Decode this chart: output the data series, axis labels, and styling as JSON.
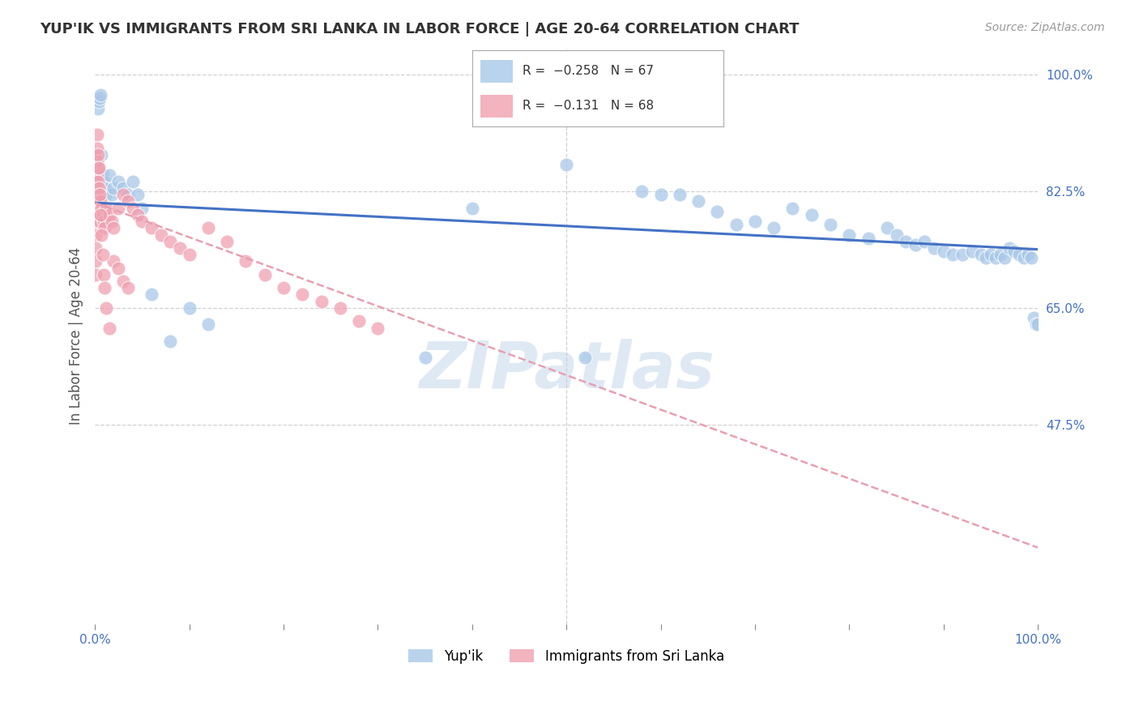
{
  "title": "YUP'IK VS IMMIGRANTS FROM SRI LANKA IN LABOR FORCE | AGE 20-64 CORRELATION CHART",
  "source": "Source: ZipAtlas.com",
  "ylabel": "In Labor Force | Age 20-64",
  "xlim": [
    0.0,
    1.0
  ],
  "ylim": [
    0.175,
    1.04
  ],
  "ytick_positions": [
    0.475,
    0.65,
    0.825,
    1.0
  ],
  "ytick_labels": [
    "47.5%",
    "65.0%",
    "82.5%",
    "100.0%"
  ],
  "yupik_color": "#a8c8e8",
  "sri_lanka_color": "#f0a0b0",
  "trend_yupik_color": "#4472c4",
  "trend_sri_lanka_color": "#e8a0b0",
  "watermark": "ZIPatlas",
  "yupik_x": [
    0.002,
    0.003,
    0.004,
    0.005,
    0.006,
    0.007,
    0.008,
    0.009,
    0.01,
    0.012,
    0.015,
    0.018,
    0.02,
    0.025,
    0.03,
    0.035,
    0.04,
    0.045,
    0.05,
    0.06,
    0.08,
    0.1,
    0.12,
    0.35,
    0.4,
    0.5,
    0.52,
    0.58,
    0.6,
    0.62,
    0.64,
    0.66,
    0.68,
    0.7,
    0.72,
    0.74,
    0.76,
    0.78,
    0.8,
    0.82,
    0.84,
    0.85,
    0.86,
    0.87,
    0.88,
    0.89,
    0.9,
    0.91,
    0.92,
    0.93,
    0.94,
    0.945,
    0.95,
    0.955,
    0.96,
    0.965,
    0.97,
    0.975,
    0.98,
    0.985,
    0.99,
    0.993,
    0.996,
    0.998,
    1.0
  ],
  "yupik_y": [
    0.855,
    0.95,
    0.96,
    0.965,
    0.97,
    0.88,
    0.85,
    0.84,
    0.83,
    0.82,
    0.85,
    0.82,
    0.83,
    0.84,
    0.83,
    0.82,
    0.84,
    0.82,
    0.8,
    0.67,
    0.6,
    0.65,
    0.625,
    0.575,
    0.8,
    0.865,
    0.575,
    0.825,
    0.82,
    0.82,
    0.81,
    0.795,
    0.775,
    0.78,
    0.77,
    0.8,
    0.79,
    0.775,
    0.76,
    0.755,
    0.77,
    0.76,
    0.75,
    0.745,
    0.75,
    0.74,
    0.735,
    0.73,
    0.73,
    0.735,
    0.73,
    0.725,
    0.73,
    0.725,
    0.73,
    0.725,
    0.74,
    0.735,
    0.73,
    0.725,
    0.73,
    0.725,
    0.635,
    0.625,
    0.625
  ],
  "sri_lanka_x": [
    0.001,
    0.001,
    0.001,
    0.001,
    0.001,
    0.001,
    0.001,
    0.001,
    0.001,
    0.001,
    0.002,
    0.002,
    0.002,
    0.002,
    0.002,
    0.003,
    0.003,
    0.003,
    0.004,
    0.004,
    0.005,
    0.005,
    0.006,
    0.006,
    0.007,
    0.008,
    0.009,
    0.01,
    0.012,
    0.015,
    0.018,
    0.02,
    0.025,
    0.03,
    0.035,
    0.04,
    0.045,
    0.05,
    0.06,
    0.07,
    0.08,
    0.09,
    0.1,
    0.12,
    0.14,
    0.16,
    0.18,
    0.2,
    0.22,
    0.24,
    0.26,
    0.28,
    0.3,
    0.02,
    0.025,
    0.03,
    0.035,
    0.003,
    0.004,
    0.005,
    0.006,
    0.007,
    0.008,
    0.009,
    0.01,
    0.012,
    0.015
  ],
  "sri_lanka_y": [
    0.88,
    0.86,
    0.84,
    0.82,
    0.8,
    0.78,
    0.76,
    0.74,
    0.72,
    0.7,
    0.91,
    0.89,
    0.87,
    0.85,
    0.83,
    0.86,
    0.84,
    0.82,
    0.83,
    0.81,
    0.8,
    0.78,
    0.81,
    0.79,
    0.8,
    0.79,
    0.78,
    0.77,
    0.8,
    0.79,
    0.78,
    0.77,
    0.8,
    0.82,
    0.81,
    0.8,
    0.79,
    0.78,
    0.77,
    0.76,
    0.75,
    0.74,
    0.73,
    0.77,
    0.75,
    0.72,
    0.7,
    0.68,
    0.67,
    0.66,
    0.65,
    0.63,
    0.62,
    0.72,
    0.71,
    0.69,
    0.68,
    0.88,
    0.86,
    0.82,
    0.79,
    0.76,
    0.73,
    0.7,
    0.68,
    0.65,
    0.62
  ],
  "trend_yupik_start_x": 0.0,
  "trend_yupik_start_y": 0.808,
  "trend_yupik_end_x": 1.0,
  "trend_yupik_end_y": 0.738,
  "trend_sri_lanka_start_x": 0.0,
  "trend_sri_lanka_start_y": 0.808,
  "trend_sri_lanka_end_x": 1.0,
  "trend_sri_lanka_end_y": 0.29
}
